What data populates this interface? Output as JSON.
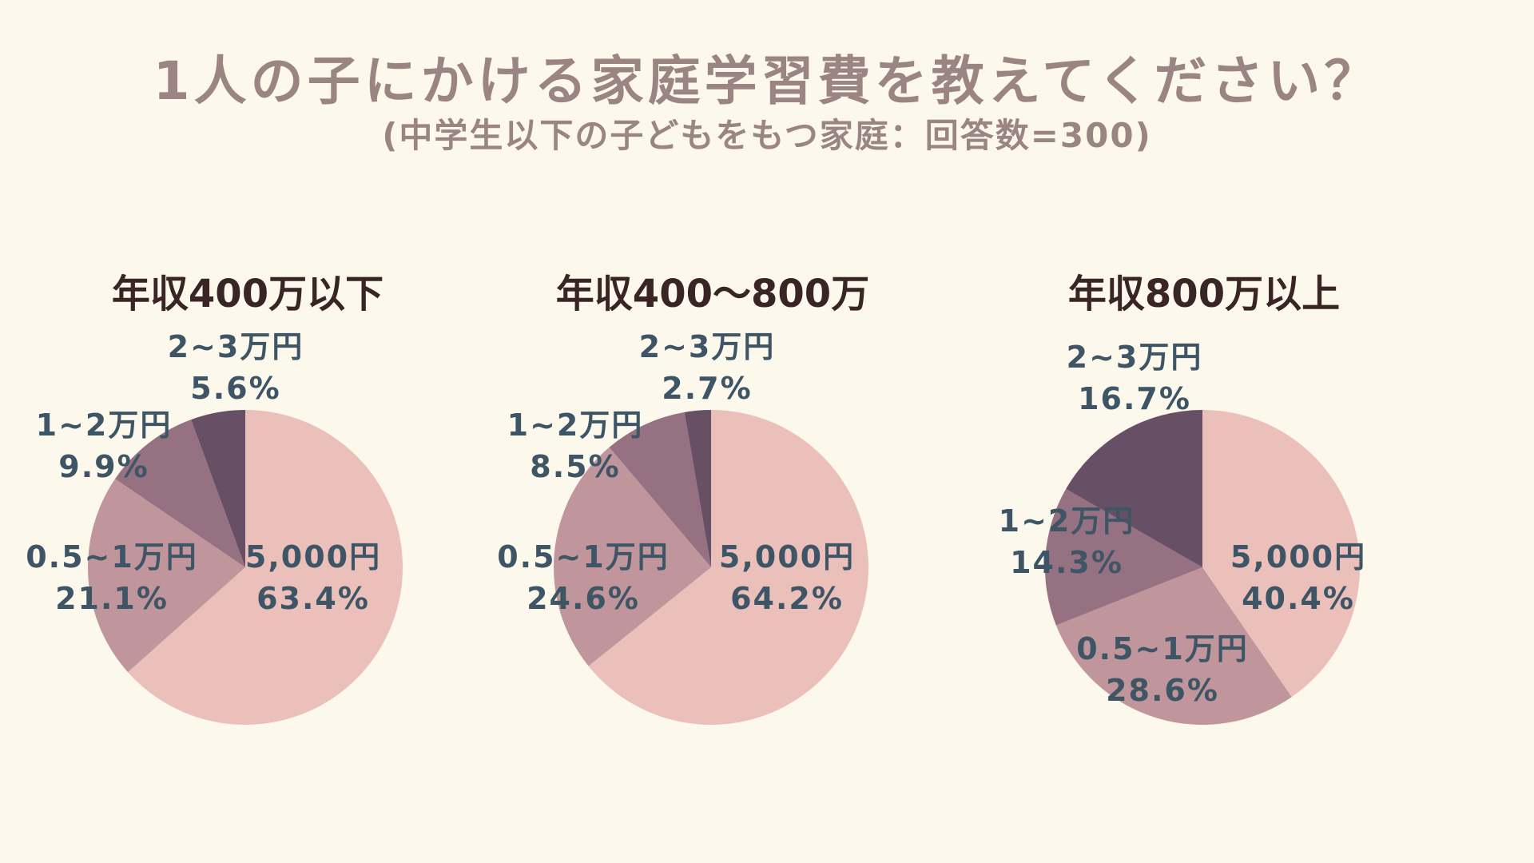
{
  "title": "1人の子にかける家庭学習費を教えてください？",
  "subtitle": "(中学生以下の子どもをもつ家庭：回答数=300)",
  "colors": {
    "background": "#fdf8ec",
    "slice_5000": "#ecc0ba",
    "slice_05_1": "#c0969c",
    "slice_1_2": "#967182",
    "slice_2_3": "#674f66",
    "label": "#3e5566",
    "title": "#9b8583",
    "chart_title": "#3a2525"
  },
  "chart_data": [
    {
      "type": "pie",
      "title": "年収400万以下",
      "categories": [
        "5,000円",
        "0.5~1万円",
        "1~2万円",
        "2~3万円"
      ],
      "values": [
        63.4,
        21.1,
        9.9,
        5.6
      ],
      "value_labels": [
        "63.4%",
        "21.1%",
        "9.9%",
        "5.6%"
      ]
    },
    {
      "type": "pie",
      "title": "年収400～800万",
      "categories": [
        "5,000円",
        "0.5~1万円",
        "1~2万円",
        "2~3万円"
      ],
      "values": [
        64.2,
        24.6,
        8.5,
        2.7
      ],
      "value_labels": [
        "64.2%",
        "24.6%",
        "8.5%",
        "2.7%"
      ]
    },
    {
      "type": "pie",
      "title": "年収800万以上",
      "categories": [
        "5,000円",
        "0.5~1万円",
        "1~2万円",
        "2~3万円"
      ],
      "values": [
        40.4,
        28.6,
        14.3,
        16.7
      ],
      "value_labels": [
        "40.4%",
        "28.6%",
        "14.3%",
        "16.7%"
      ]
    }
  ]
}
